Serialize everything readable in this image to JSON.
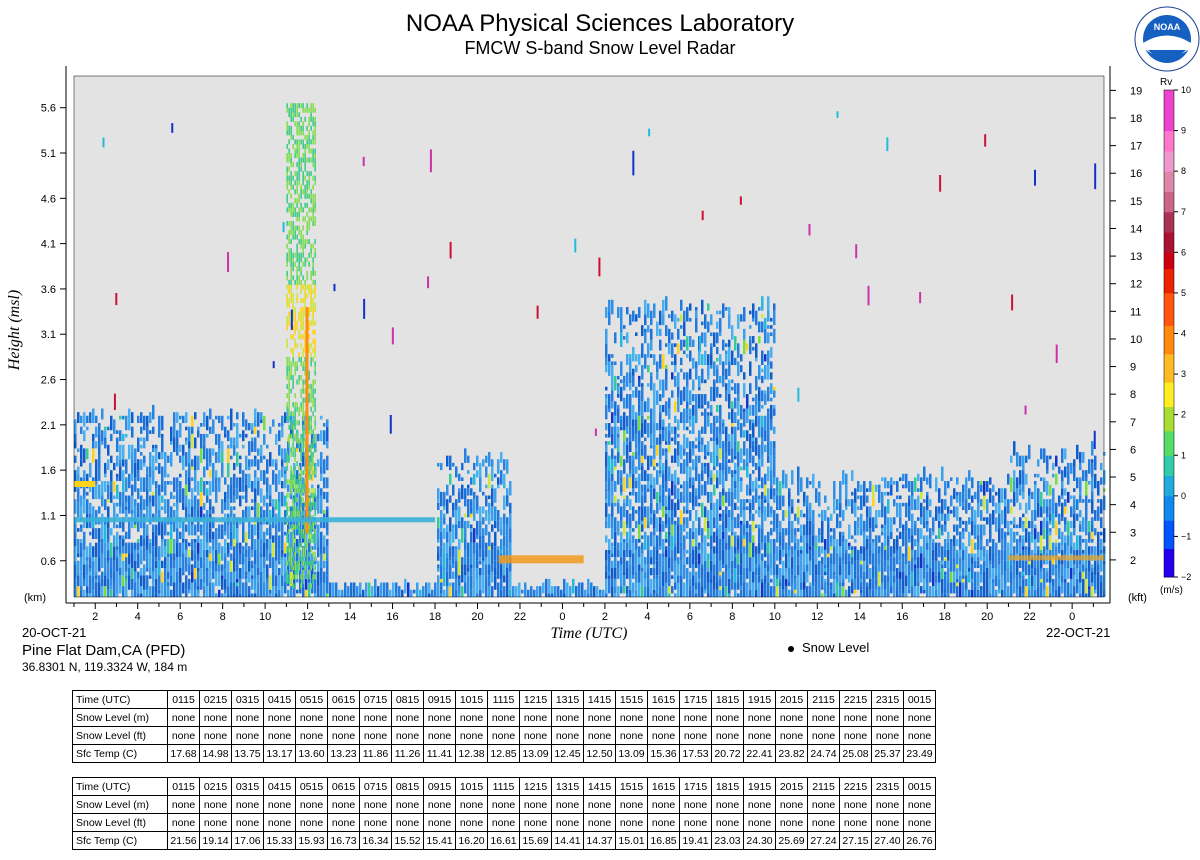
{
  "header": {
    "title": "NOAA Physical Sciences Laboratory",
    "subtitle": "FMCW S-band Snow Level Radar"
  },
  "logo": {
    "icon": "noaa-logo-icon",
    "text": "NOAA"
  },
  "site": {
    "name": "Pine Flat Dam,CA (PFD)",
    "coords": "36.8301 N, 119.3324 W, 184 m"
  },
  "dates": {
    "start": "20-OCT-21",
    "end": "22-OCT-21"
  },
  "legend": {
    "snow_level": "Snow Level"
  },
  "chart_data": {
    "type": "heatmap",
    "xlabel": "Time (UTC)",
    "ylabel": "Height (msl)",
    "y_unit_left": "(km)",
    "y_unit_right": "(kft)",
    "x_ticks": [
      "2",
      "4",
      "6",
      "8",
      "10",
      "12",
      "14",
      "16",
      "18",
      "20",
      "22",
      "0",
      "2",
      "4",
      "6",
      "8",
      "10",
      "12",
      "14",
      "16",
      "18",
      "20",
      "22",
      "0"
    ],
    "y_ticks_km": [
      0.6,
      1.1,
      1.6,
      2.1,
      2.6,
      3.1,
      3.6,
      4.1,
      4.6,
      5.1,
      5.6
    ],
    "y_ticks_km_labels": [
      "0.6",
      "1.1",
      "1.6",
      "2.1",
      "2.6",
      "3.1",
      "3.6",
      "4.1",
      "4.6",
      "5.1",
      "5.6"
    ],
    "y_ticks_kft": [
      2,
      3,
      4,
      5,
      6,
      7,
      8,
      9,
      10,
      11,
      12,
      13,
      14,
      15,
      16,
      17,
      18,
      19
    ],
    "y_ticks_kft_labels": [
      "2",
      "3",
      "4",
      "5",
      "6",
      "7",
      "8",
      "9",
      "10",
      "11",
      "12",
      "13",
      "14",
      "15",
      "16",
      "17",
      "18",
      "19"
    ],
    "ylim_km": [
      0.2,
      5.95
    ],
    "x_hours_range": [
      1.0,
      49.5
    ],
    "colorbar": {
      "label": "Rv",
      "unit": "(m/s)",
      "range": [
        -2,
        10
      ],
      "ticks": [
        "−2",
        "−1",
        "0",
        "1",
        "2",
        "3",
        "4",
        "5",
        "6",
        "7",
        "8",
        "9",
        "10"
      ],
      "tick_values": [
        -2,
        -1,
        0,
        1,
        2,
        3,
        4,
        5,
        6,
        7,
        8,
        9,
        10
      ]
    },
    "echo_regions": [
      {
        "hours": [
          1,
          13
        ],
        "top_km": 2.2,
        "note": "shallow echoes"
      },
      {
        "hours": [
          11,
          12.5
        ],
        "top_km": 5.6,
        "note": "deep echo"
      },
      {
        "hours": [
          18,
          21.5
        ],
        "top_km": 1.7
      },
      {
        "hours": [
          26,
          34
        ],
        "top_km": 3.4
      },
      {
        "hours": [
          34,
          45
        ],
        "top_km": 1.5
      },
      {
        "hours": [
          45,
          50
        ],
        "top_km": 1.8
      }
    ]
  },
  "tables": [
    {
      "rows": [
        {
          "label": "Time (UTC)",
          "values": [
            "0115",
            "0215",
            "0315",
            "0415",
            "0515",
            "0615",
            "0715",
            "0815",
            "0915",
            "1015",
            "1115",
            "1215",
            "1315",
            "1415",
            "1515",
            "1615",
            "1715",
            "1815",
            "1915",
            "2015",
            "2115",
            "2215",
            "2315",
            "0015"
          ]
        },
        {
          "label": "Snow Level (m)",
          "values": [
            "none",
            "none",
            "none",
            "none",
            "none",
            "none",
            "none",
            "none",
            "none",
            "none",
            "none",
            "none",
            "none",
            "none",
            "none",
            "none",
            "none",
            "none",
            "none",
            "none",
            "none",
            "none",
            "none",
            "none"
          ]
        },
        {
          "label": "Snow Level (ft)",
          "values": [
            "none",
            "none",
            "none",
            "none",
            "none",
            "none",
            "none",
            "none",
            "none",
            "none",
            "none",
            "none",
            "none",
            "none",
            "none",
            "none",
            "none",
            "none",
            "none",
            "none",
            "none",
            "none",
            "none",
            "none"
          ]
        },
        {
          "label": "Sfc Temp (C)",
          "values": [
            "17.68",
            "14.98",
            "13.75",
            "13.17",
            "13.60",
            "13.23",
            "11.86",
            "11.26",
            "11.41",
            "12.38",
            "12.85",
            "13.09",
            "12.45",
            "12.50",
            "13.09",
            "15.36",
            "17.53",
            "20.72",
            "22.41",
            "23.82",
            "24.74",
            "25.08",
            "25.37",
            "23.49"
          ]
        }
      ]
    },
    {
      "rows": [
        {
          "label": "Time (UTC)",
          "values": [
            "0115",
            "0215",
            "0315",
            "0415",
            "0515",
            "0615",
            "0715",
            "0815",
            "0915",
            "1015",
            "1115",
            "1215",
            "1315",
            "1415",
            "1515",
            "1615",
            "1715",
            "1815",
            "1915",
            "2015",
            "2115",
            "2215",
            "2315",
            "0015"
          ]
        },
        {
          "label": "Snow Level (m)",
          "values": [
            "none",
            "none",
            "none",
            "none",
            "none",
            "none",
            "none",
            "none",
            "none",
            "none",
            "none",
            "none",
            "none",
            "none",
            "none",
            "none",
            "none",
            "none",
            "none",
            "none",
            "none",
            "none",
            "none",
            "none"
          ]
        },
        {
          "label": "Snow Level (ft)",
          "values": [
            "none",
            "none",
            "none",
            "none",
            "none",
            "none",
            "none",
            "none",
            "none",
            "none",
            "none",
            "none",
            "none",
            "none",
            "none",
            "none",
            "none",
            "none",
            "none",
            "none",
            "none",
            "none",
            "none",
            "none"
          ]
        },
        {
          "label": "Sfc Temp (C)",
          "values": [
            "21.56",
            "19.14",
            "17.06",
            "15.33",
            "15.93",
            "16.73",
            "16.34",
            "15.52",
            "15.41",
            "16.20",
            "16.61",
            "15.69",
            "14.41",
            "14.37",
            "15.01",
            "16.85",
            "19.41",
            "23.03",
            "24.30",
            "25.69",
            "27.24",
            "27.15",
            "27.40",
            "26.76"
          ]
        }
      ]
    }
  ]
}
